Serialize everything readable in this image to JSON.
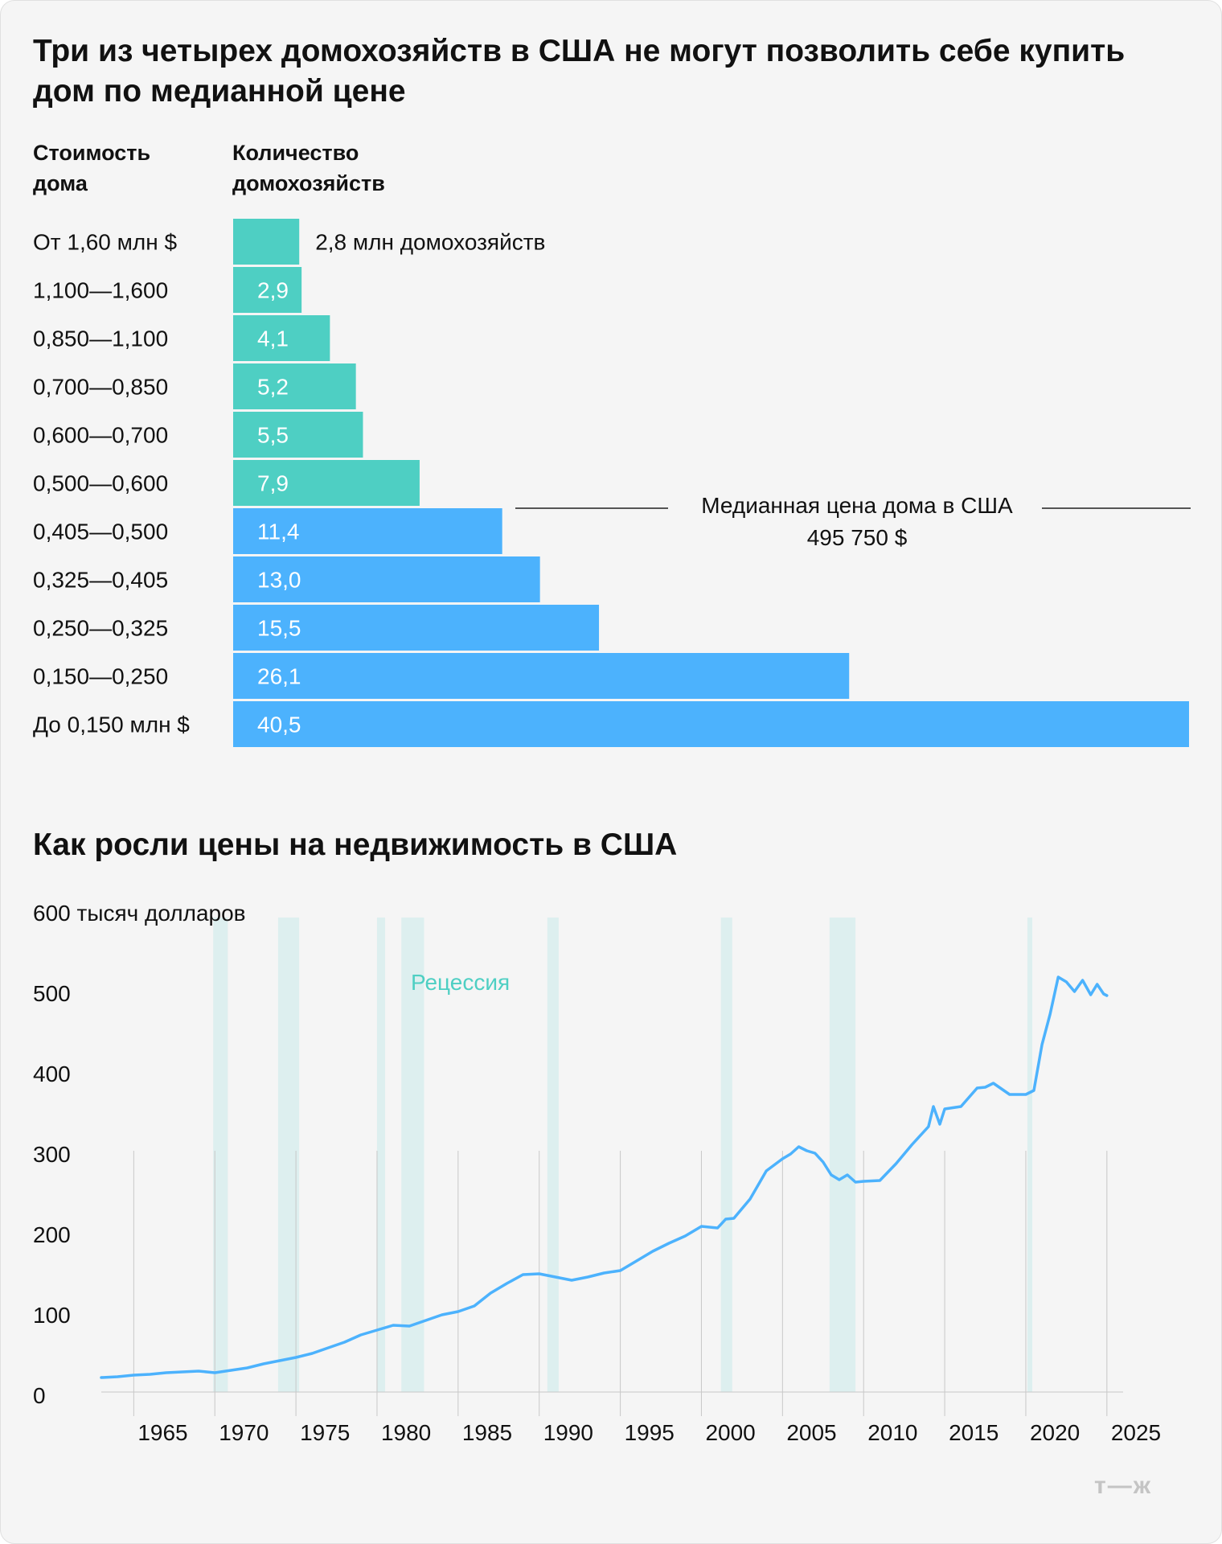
{
  "bar_chart": {
    "title": "Три из четырех домохозяйств в США не могут позволить себе купить дом по медианной цене",
    "col1": "Стоимость дома",
    "col2": "Количество домохозяйств",
    "median_label": "Медианная цена дома в США",
    "median_value": "495 750 $",
    "colors": {
      "above": "#4ecfc3",
      "below": "#4cb2fd"
    }
  },
  "line_chart": {
    "title": "Как росли цены на недвижимость в США",
    "legend_recession": "Рецессия",
    "line_color": "#4cb2fd",
    "recession_color": "#ddefef",
    "recession_label_color": "#4ecfc3"
  },
  "logo": "т—ж",
  "chart_data": [
    {
      "type": "bar",
      "orientation": "horizontal",
      "title": "Три из четырех домохозяйств в США не могут позволить себе купить дом по медианной цене",
      "ylabel": "Стоимость дома",
      "xlabel": "Количество домохозяйств",
      "categories": [
        "От 1,60 млн $",
        "1,100—1,600",
        "0,850—1,100",
        "0,700—0,850",
        "0,600—0,700",
        "0,500—0,600",
        "0,405—0,500",
        "0,325—0,405",
        "0,250—0,325",
        "0,150—0,250",
        "До 0,150 млн $"
      ],
      "values": [
        2.8,
        2.9,
        4.1,
        5.2,
        5.5,
        7.9,
        11.4,
        13.0,
        15.5,
        26.1,
        40.5
      ],
      "labels": [
        "2,8 млн домохозяйств",
        "2,9",
        "4,1",
        "5,2",
        "5,5",
        "7,9",
        "11,4",
        "13,0",
        "15,5",
        "26,1",
        "40,5"
      ],
      "xlim": [
        0,
        40.5
      ],
      "annotation": {
        "text": "Медианная цена дома в США",
        "value": "495 750 $"
      }
    },
    {
      "type": "line",
      "title": "Как росли цены на недвижимость в США",
      "ylabel": "600 тысяч долларов",
      "xlim": [
        1963,
        2026
      ],
      "ylim": [
        0,
        600
      ],
      "x_ticks": [
        1965,
        1970,
        1975,
        1980,
        1985,
        1990,
        1995,
        2000,
        2005,
        2010,
        2015,
        2020,
        2025
      ],
      "y_ticks": [
        0,
        100,
        200,
        300,
        400,
        500
      ],
      "grid": true,
      "recessions": [
        [
          1969.9,
          1970.8
        ],
        [
          1973.9,
          1975.2
        ],
        [
          1980.0,
          1980.5
        ],
        [
          1981.5,
          1982.9
        ],
        [
          1990.5,
          1991.2
        ],
        [
          2001.2,
          2001.9
        ],
        [
          2007.9,
          2009.5
        ],
        [
          2020.1,
          2020.4
        ]
      ],
      "series": [
        {
          "x": [
            1963.0,
            1964.0,
            1965.0,
            1966.0,
            1967.0,
            1968.0,
            1969.0,
            1970.0,
            1971.0,
            1972.0,
            1973.0,
            1974.0,
            1975.0,
            1976.0,
            1977.0,
            1978.0,
            1979.0,
            1980.0,
            1981.0,
            1982.0,
            1983.0,
            1984.0,
            1985.0,
            1986.0,
            1987.0,
            1988.0,
            1989.0,
            1990.0,
            1991.0,
            1992.0,
            1993.0,
            1994.0,
            1995.0,
            1996.0,
            1997.0,
            1998.0,
            1999.0,
            2000.0,
            2001.0,
            2001.5,
            2002.0,
            2003.0,
            2004.0,
            2005.0,
            2005.5,
            2006.0,
            2006.5,
            2007.0,
            2007.5,
            2008.0,
            2008.5,
            2009.0,
            2009.5,
            2010.0,
            2011.0,
            2012.0,
            2013.0,
            2014.0,
            2014.3,
            2014.7,
            2015.0,
            2016.0,
            2017.0,
            2017.5,
            2018.0,
            2019.0,
            2020.0,
            2020.5,
            2021.0,
            2021.5,
            2022.0,
            2022.5,
            2023.0,
            2023.5,
            2024.0,
            2024.4,
            2024.8,
            2025.0
          ],
          "y": [
            18,
            19,
            21,
            22,
            24,
            25,
            26,
            24,
            27,
            30,
            35,
            39,
            43,
            48,
            55,
            62,
            71,
            77,
            83,
            82,
            89,
            96,
            100,
            107,
            123,
            135,
            146,
            147,
            143,
            139,
            143,
            148,
            151,
            163,
            175,
            185,
            194,
            206,
            204,
            215,
            216,
            240,
            275,
            290,
            296,
            305,
            300,
            297,
            286,
            270,
            264,
            270,
            261,
            262,
            263,
            284,
            308,
            330,
            355,
            333,
            352,
            355,
            378,
            379,
            384,
            370,
            370,
            375,
            432,
            470,
            516,
            510,
            498,
            512,
            494,
            507,
            495,
            493
          ]
        }
      ]
    }
  ]
}
